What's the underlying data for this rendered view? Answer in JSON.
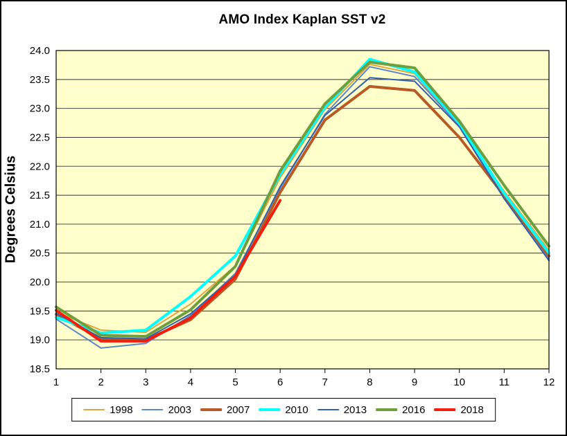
{
  "window": {
    "background_color": "#FFFFFF",
    "frame_border_color": "#000000"
  },
  "chart_data": {
    "type": "line",
    "title": "AMO Index Kaplan SST v2",
    "xlabel": "",
    "ylabel": "Degrees Celsius",
    "x": [
      1,
      2,
      3,
      4,
      5,
      6,
      7,
      8,
      9,
      10,
      11,
      12
    ],
    "x_tick_labels": [
      "1",
      "2",
      "3",
      "4",
      "5",
      "6",
      "7",
      "8",
      "9",
      "10",
      "11",
      "12"
    ],
    "y_tick_labels": [
      "18.5",
      "19.0",
      "19.5",
      "20.0",
      "20.5",
      "21.0",
      "21.5",
      "22.0",
      "22.5",
      "23.0",
      "23.5",
      "24.0"
    ],
    "ylim": [
      18.5,
      24.0
    ],
    "ytick_step": 0.5,
    "grid": "horizontal",
    "plot_bg_color": "#FFFFCC",
    "gridline_color": "#4d4d4d",
    "axis_color": "#000000",
    "legend_position": "bottom",
    "series": [
      {
        "name": "1998",
        "color": "#E2A33C",
        "stroke_width": 2,
        "values": [
          19.48,
          19.17,
          19.13,
          19.62,
          20.28,
          21.8,
          22.98,
          23.76,
          23.6,
          22.7,
          21.57,
          20.55
        ]
      },
      {
        "name": "2003",
        "color": "#5E86C4",
        "stroke_width": 2,
        "values": [
          19.36,
          18.86,
          18.94,
          19.42,
          20.15,
          21.62,
          22.9,
          23.72,
          23.55,
          22.7,
          21.45,
          20.4
        ]
      },
      {
        "name": "2007",
        "color": "#B85A24",
        "stroke_width": 4,
        "values": [
          19.44,
          19.02,
          19.0,
          19.35,
          20.05,
          21.55,
          22.8,
          23.38,
          23.31,
          22.5,
          21.49,
          20.45
        ]
      },
      {
        "name": "2010",
        "color": "#00FFFF",
        "stroke_width": 4,
        "values": [
          19.39,
          19.12,
          19.17,
          19.75,
          20.45,
          21.86,
          23.02,
          23.85,
          23.63,
          22.74,
          21.53,
          20.5
        ]
      },
      {
        "name": "2013",
        "color": "#335FA8",
        "stroke_width": 2,
        "values": [
          19.46,
          19.04,
          19.02,
          19.45,
          20.12,
          21.65,
          22.88,
          23.53,
          23.47,
          22.68,
          21.44,
          20.37
        ]
      },
      {
        "name": "2016",
        "color": "#6E9E3D",
        "stroke_width": 4,
        "values": [
          19.57,
          19.08,
          19.06,
          19.52,
          20.27,
          21.92,
          23.08,
          23.8,
          23.7,
          22.78,
          21.67,
          20.62
        ]
      },
      {
        "name": "2018",
        "color": "#F51D0B",
        "stroke_width": 4,
        "values": [
          19.51,
          18.98,
          18.98,
          19.38,
          20.1,
          21.41,
          null,
          null,
          null,
          null,
          null,
          null
        ]
      }
    ]
  }
}
